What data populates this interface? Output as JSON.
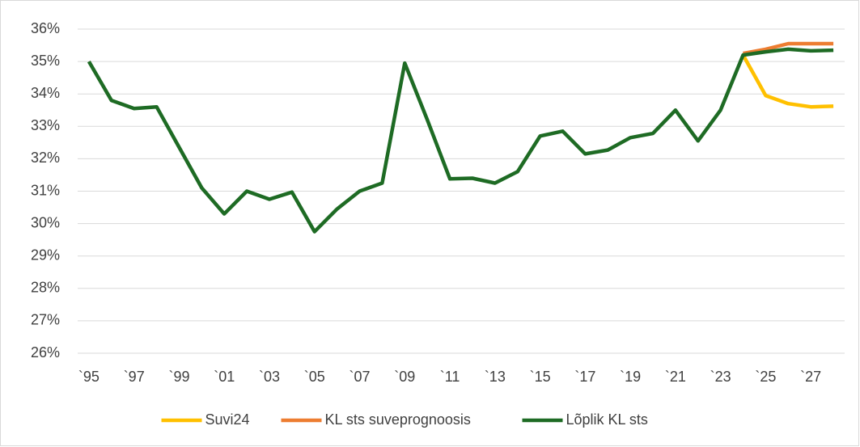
{
  "chart_data": {
    "type": "line",
    "categories": [
      "`95",
      null,
      "`97",
      null,
      "`99",
      null,
      "`01",
      null,
      "`03",
      null,
      "`05",
      null,
      "`07",
      null,
      "`09",
      null,
      "`11",
      null,
      "`13",
      null,
      "`15",
      null,
      "`17",
      null,
      "`19",
      null,
      "`21",
      null,
      "`23",
      null,
      "`25",
      null,
      "`27",
      null
    ],
    "series": [
      {
        "name": "Suvi24",
        "color": "#ffc000",
        "values": [
          null,
          null,
          null,
          null,
          null,
          null,
          null,
          null,
          null,
          null,
          null,
          null,
          null,
          null,
          null,
          null,
          null,
          null,
          null,
          null,
          null,
          null,
          null,
          null,
          null,
          null,
          null,
          null,
          null,
          35.2,
          33.95,
          33.7,
          33.6,
          33.62
        ]
      },
      {
        "name": "KL sts suveprognoosis",
        "color": "#ed7d31",
        "values": [
          null,
          null,
          null,
          null,
          null,
          null,
          null,
          null,
          null,
          null,
          null,
          null,
          null,
          null,
          null,
          null,
          null,
          null,
          null,
          null,
          null,
          null,
          null,
          null,
          null,
          null,
          null,
          null,
          null,
          35.25,
          35.38,
          35.55,
          35.55,
          35.55
        ]
      },
      {
        "name": "Lõplik KL sts",
        "color": "#1e6b24",
        "values": [
          35.0,
          33.8,
          33.55,
          33.6,
          32.35,
          31.1,
          30.3,
          31.0,
          30.75,
          30.97,
          29.75,
          30.45,
          31.0,
          31.25,
          34.95,
          33.2,
          31.38,
          31.4,
          31.25,
          31.6,
          32.7,
          32.85,
          32.15,
          32.27,
          32.65,
          32.78,
          33.5,
          32.55,
          33.5,
          35.2,
          35.3,
          35.38,
          35.33,
          35.35
        ]
      }
    ],
    "ylim": [
      26,
      36
    ],
    "yticks": [
      {
        "value": 26,
        "label": "26%"
      },
      {
        "value": 27,
        "label": "27%"
      },
      {
        "value": 28,
        "label": "28%"
      },
      {
        "value": 29,
        "label": "29%"
      },
      {
        "value": 30,
        "label": "30%"
      },
      {
        "value": 31,
        "label": "31%"
      },
      {
        "value": 32,
        "label": "32%"
      },
      {
        "value": 33,
        "label": "33%"
      },
      {
        "value": 34,
        "label": "34%"
      },
      {
        "value": 35,
        "label": "35%"
      },
      {
        "value": 36,
        "label": "36%"
      }
    ],
    "grid": true,
    "legend": "bottom"
  }
}
